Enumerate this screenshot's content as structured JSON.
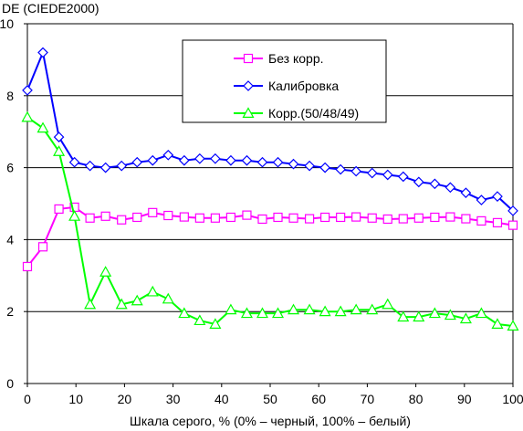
{
  "chart_data": {
    "type": "line",
    "title": "",
    "ylabel": "DE (CIEDE2000)",
    "xlabel": "Шкала серого, % (0% – черный, 100% – белый)",
    "xlim": [
      0,
      100
    ],
    "ylim": [
      0,
      10
    ],
    "xticks": [
      "0",
      "10",
      "20",
      "30",
      "40",
      "50",
      "60",
      "70",
      "80",
      "90",
      "100"
    ],
    "yticks": [
      "0",
      "2",
      "4",
      "6",
      "8",
      "10"
    ],
    "grid": "horizontal",
    "legend_position": "top-right",
    "x": [
      0,
      3.2,
      6.5,
      9.7,
      12.9,
      16.1,
      19.4,
      22.6,
      25.8,
      29,
      32.3,
      35.5,
      38.7,
      41.9,
      45.2,
      48.4,
      51.6,
      54.8,
      58.1,
      61.3,
      64.5,
      67.7,
      71,
      74.2,
      77.4,
      80.6,
      83.9,
      87.1,
      90.3,
      93.5,
      96.8,
      100
    ],
    "series": [
      {
        "name": "Без корр.",
        "color": "#ff00ff",
        "marker": "square",
        "values": [
          3.25,
          3.8,
          4.85,
          4.9,
          4.6,
          4.65,
          4.55,
          4.62,
          4.75,
          4.67,
          4.63,
          4.6,
          4.6,
          4.62,
          4.68,
          4.57,
          4.62,
          4.6,
          4.58,
          4.62,
          4.62,
          4.63,
          4.6,
          4.57,
          4.58,
          4.6,
          4.62,
          4.63,
          4.58,
          4.52,
          4.47,
          4.4
        ]
      },
      {
        "name": "Калибровка",
        "color": "#0000ff",
        "marker": "diamond",
        "values": [
          8.15,
          9.2,
          6.85,
          6.15,
          6.05,
          6.0,
          6.05,
          6.15,
          6.2,
          6.35,
          6.2,
          6.25,
          6.25,
          6.2,
          6.2,
          6.15,
          6.15,
          6.1,
          6.05,
          6.0,
          5.95,
          5.9,
          5.85,
          5.8,
          5.75,
          5.6,
          5.55,
          5.45,
          5.3,
          5.1,
          5.2,
          4.8
        ]
      },
      {
        "name": "Корр.(50/48/49)",
        "color": "#00ff00",
        "marker": "triangle",
        "values": [
          7.4,
          7.1,
          6.45,
          4.65,
          2.2,
          3.1,
          2.2,
          2.3,
          2.55,
          2.35,
          1.95,
          1.75,
          1.65,
          2.05,
          1.95,
          1.95,
          1.95,
          2.05,
          2.05,
          2.0,
          2.0,
          2.05,
          2.05,
          2.2,
          1.85,
          1.85,
          1.95,
          1.9,
          1.8,
          1.95,
          1.65,
          1.6
        ]
      }
    ]
  }
}
